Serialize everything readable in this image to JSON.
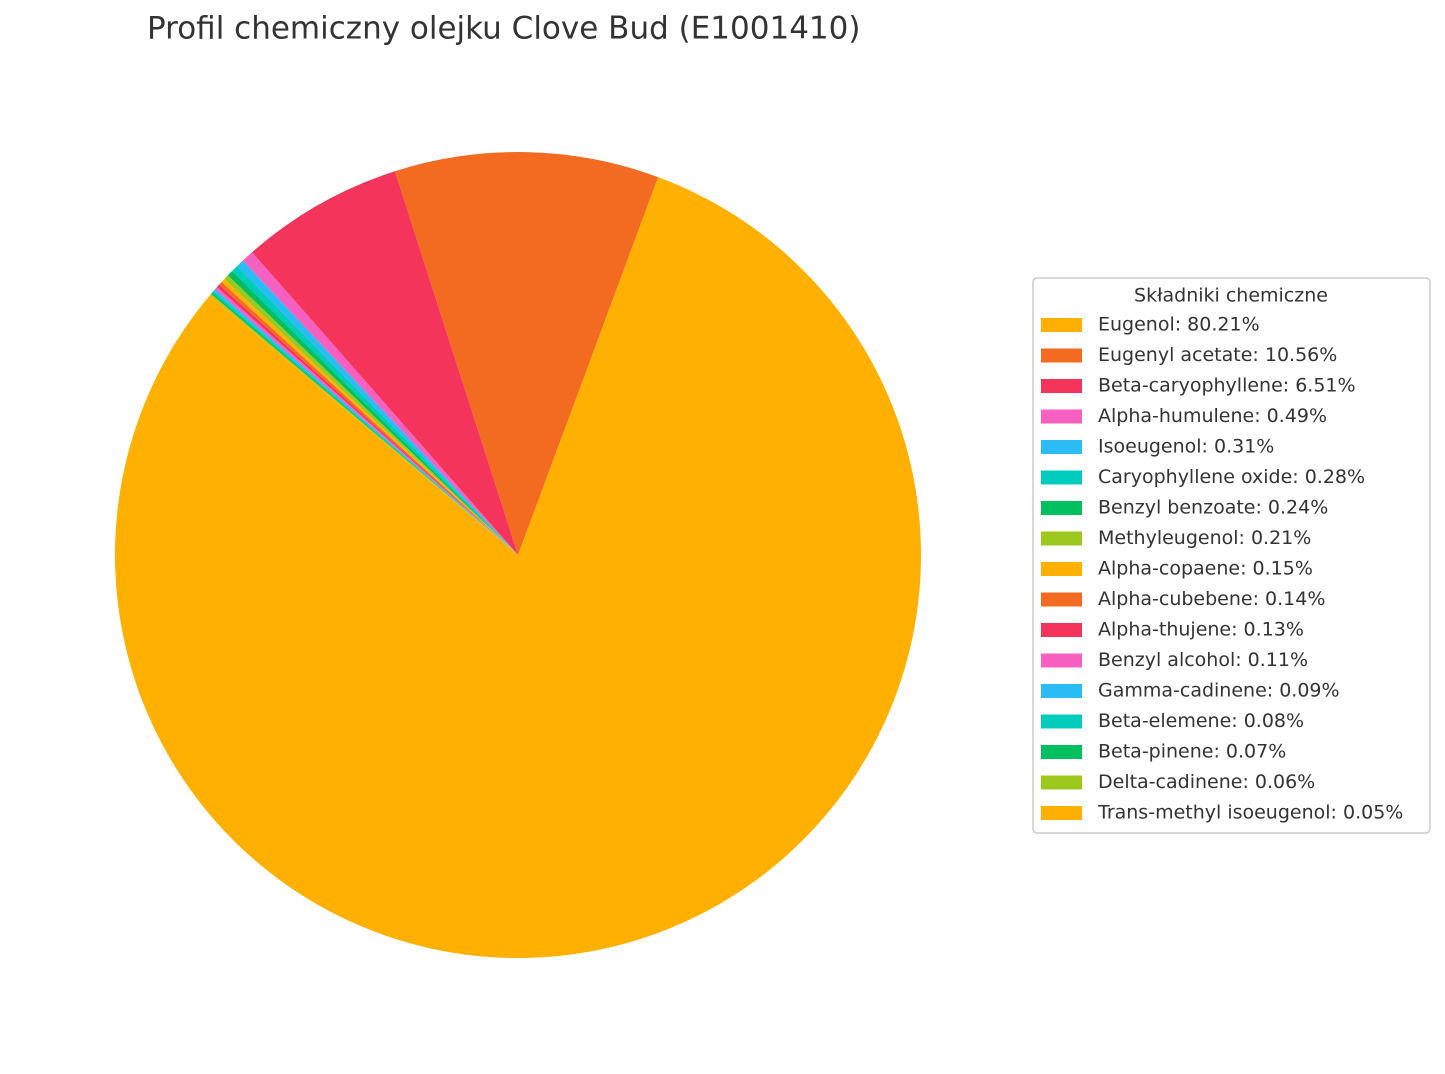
{
  "chart_data": {
    "type": "pie",
    "title": "Profil chemiczny olejku Clove Bud (E1001410)",
    "legend_title": "Składniki chemiczne",
    "legend": "right",
    "categories": [
      "Eugenol: 80.21%",
      "Eugenyl acetate: 10.56%",
      "Beta-caryophyllene: 6.51%",
      "Alpha-humulene: 0.49%",
      "Isoeugenol: 0.31%",
      "Caryophyllene oxide: 0.28%",
      "Benzyl benzoate: 0.24%",
      "Methyleugenol: 0.21%",
      "Alpha-copaene: 0.15%",
      "Alpha-cubebene: 0.14%",
      "Alpha-thujene: 0.13%",
      "Benzyl alcohol: 0.11%",
      "Gamma-cadinene: 0.09%",
      "Beta-elemene: 0.08%",
      "Beta-pinene: 0.07%",
      "Delta-cadinene: 0.06%",
      "Trans-methyl isoeugenol: 0.05%"
    ],
    "values": [
      80.21,
      10.56,
      6.51,
      0.49,
      0.31,
      0.28,
      0.24,
      0.21,
      0.15,
      0.14,
      0.13,
      0.11,
      0.09,
      0.08,
      0.07,
      0.06,
      0.05
    ],
    "colors": [
      "#FFB000",
      "#F26B21",
      "#F5345B",
      "#F75FC0",
      "#2BBBF5",
      "#00CCBE",
      "#00BF5E",
      "#9DC91E",
      "#FFB000",
      "#F26B21",
      "#F5345B",
      "#F75FC0",
      "#2BBBF5",
      "#00CCBE",
      "#00BF5E",
      "#9DC91E",
      "#FFB000"
    ]
  }
}
